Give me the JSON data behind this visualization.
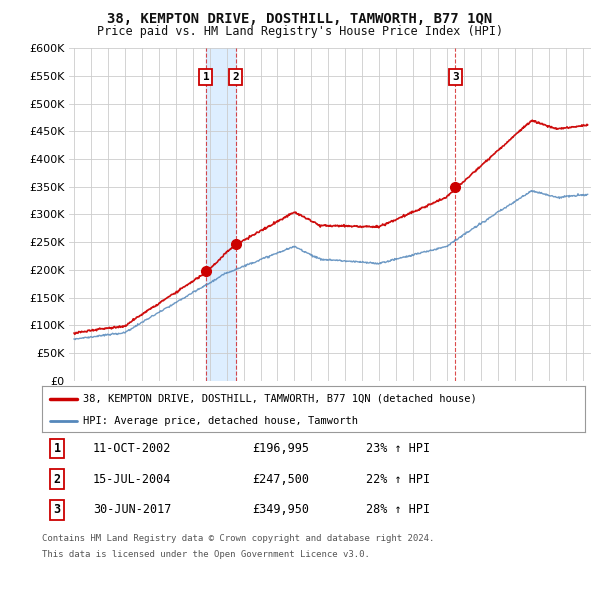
{
  "title": "38, KEMPTON DRIVE, DOSTHILL, TAMWORTH, B77 1QN",
  "subtitle": "Price paid vs. HM Land Registry's House Price Index (HPI)",
  "ylim": [
    0,
    600000
  ],
  "yticks": [
    0,
    50000,
    100000,
    150000,
    200000,
    250000,
    300000,
    350000,
    400000,
    450000,
    500000,
    550000,
    600000
  ],
  "xlim_start": 1994.7,
  "xlim_end": 2025.5,
  "red_color": "#cc0000",
  "blue_color": "#5588bb",
  "grid_color": "#cccccc",
  "shade_color": "#ddeeff",
  "bg_color": "#ffffff",
  "transaction_labels": [
    {
      "n": "1",
      "date": "11-OCT-2002",
      "price": "£196,995",
      "hpi": "23% ↑ HPI",
      "year": 2002.78
    },
    {
      "n": "2",
      "date": "15-JUL-2004",
      "price": "£247,500",
      "hpi": "22% ↑ HPI",
      "year": 2004.54
    },
    {
      "n": "3",
      "date": "30-JUN-2017",
      "price": "£349,950",
      "hpi": "28% ↑ HPI",
      "year": 2017.5
    }
  ],
  "transaction_prices": [
    196995,
    247500,
    349950
  ],
  "legend_line1": "38, KEMPTON DRIVE, DOSTHILL, TAMWORTH, B77 1QN (detached house)",
  "legend_line2": "HPI: Average price, detached house, Tamworth",
  "footnote1": "Contains HM Land Registry data © Crown copyright and database right 2024.",
  "footnote2": "This data is licensed under the Open Government Licence v3.0."
}
